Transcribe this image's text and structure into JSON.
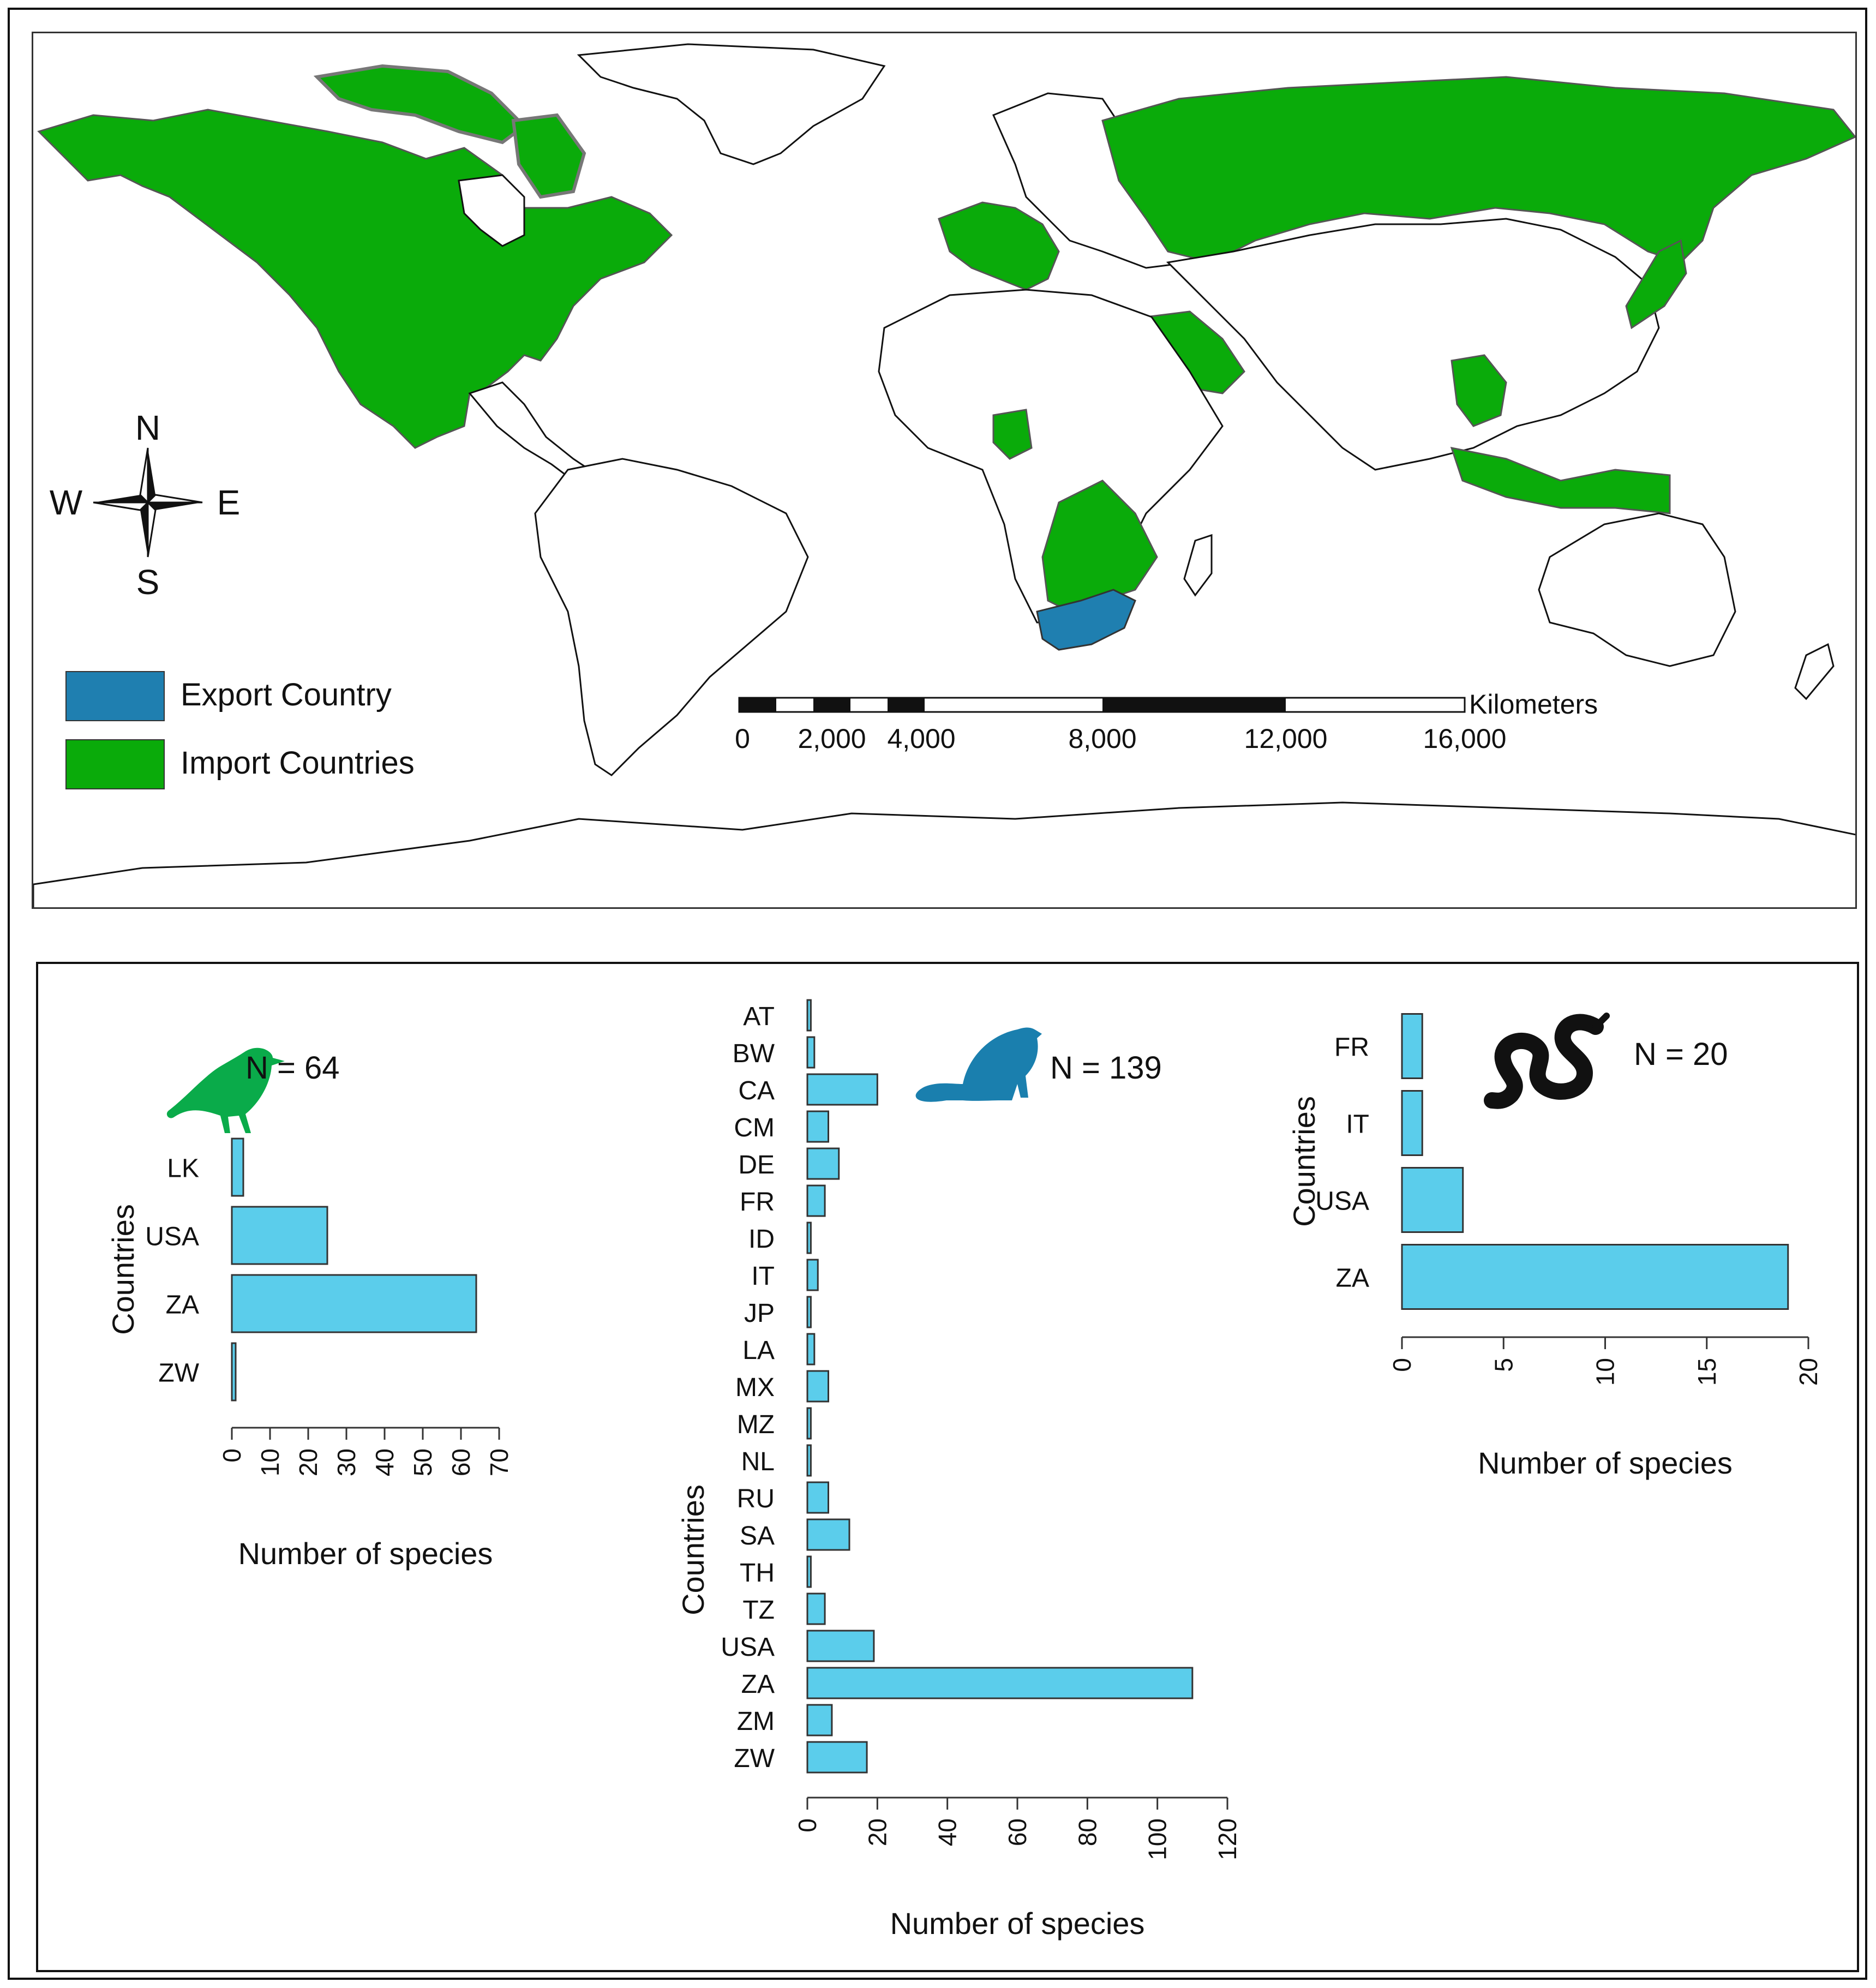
{
  "map": {
    "legend": [
      {
        "label": "Export Country",
        "color": "#1f7fb0"
      },
      {
        "label": "Import Countries",
        "color": "#0aab0a"
      }
    ],
    "compass": {
      "north": "N",
      "south": "S",
      "east": "E",
      "west": "W"
    },
    "scale_bar": {
      "unit": "Kilometers",
      "ticks": [
        "0",
        "2,000",
        "4,000",
        "8,000",
        "12,000",
        "16,000"
      ]
    },
    "colors": {
      "land": "#ffffff",
      "outline": "#111111",
      "import": "#0aab0a",
      "export": "#1f7fb0",
      "ice": "#777777"
    }
  },
  "chart_data": [
    {
      "type": "bar",
      "orientation": "horizontal",
      "icon": "bird-icon",
      "icon_color": "#0aab4a",
      "annotation": "N = 64",
      "categories": [
        "LK",
        "USA",
        "ZA",
        "ZW"
      ],
      "values": [
        3,
        25,
        64,
        1
      ],
      "xlabel": "Number of species",
      "ylabel": "Countries",
      "xlim": [
        0,
        70
      ],
      "xticks": [
        0,
        10,
        20,
        30,
        40,
        50,
        60,
        70
      ],
      "bar_color": "#5bcdeb"
    },
    {
      "type": "bar",
      "orientation": "horizontal",
      "icon": "beaver-icon",
      "icon_color": "#1a7fae",
      "annotation": "N = 139",
      "categories": [
        "AT",
        "BW",
        "CA",
        "CM",
        "DE",
        "FR",
        "ID",
        "IT",
        "JP",
        "LA",
        "MX",
        "MZ",
        "NL",
        "RU",
        "SA",
        "TH",
        "TZ",
        "USA",
        "ZA",
        "ZM",
        "ZW"
      ],
      "values": [
        1,
        2,
        20,
        6,
        9,
        5,
        1,
        3,
        1,
        2,
        6,
        1,
        1,
        6,
        12,
        1,
        5,
        19,
        110,
        7,
        17
      ],
      "xlabel": "Number of species",
      "ylabel": "Countries",
      "xlim": [
        0,
        120
      ],
      "xticks": [
        0,
        20,
        40,
        60,
        80,
        100,
        120
      ],
      "bar_color": "#5bcdeb"
    },
    {
      "type": "bar",
      "orientation": "horizontal",
      "icon": "snake-icon",
      "icon_color": "#111111",
      "annotation": "N = 20",
      "categories": [
        "FR",
        "IT",
        "USA",
        "ZA"
      ],
      "values": [
        1,
        1,
        3,
        19
      ],
      "xlabel": "Number of species",
      "ylabel": "Countries",
      "xlim": [
        0,
        20
      ],
      "xticks": [
        0,
        5,
        10,
        15,
        20
      ],
      "bar_color": "#5bcdeb"
    }
  ]
}
